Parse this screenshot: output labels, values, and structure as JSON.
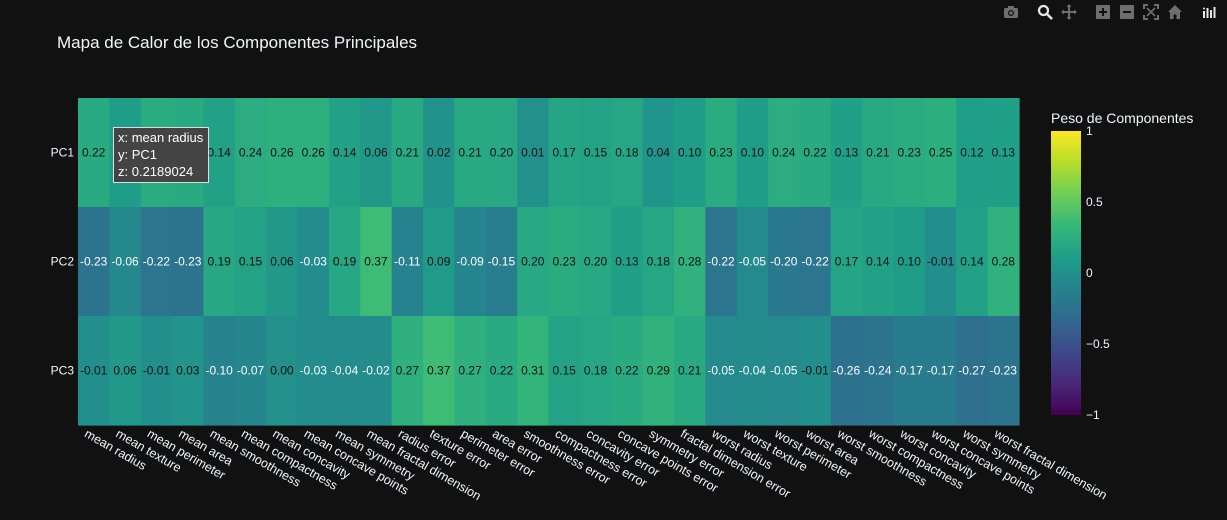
{
  "title": "Mapa de Calor de los Componentes Principales",
  "modebar": {
    "buttons": [
      "camera-icon",
      "zoom-icon",
      "pan-icon",
      "zoom-in-icon",
      "zoom-out-icon",
      "autoscale-icon",
      "home-icon",
      "plotly-logo-icon"
    ]
  },
  "hover": {
    "x": "x: mean radius",
    "y": "y: PC1",
    "z": "z: 0.2189024"
  },
  "chart_data": {
    "type": "heatmap",
    "title": "Mapa de Calor de los Componentes Principales",
    "x": [
      "mean radius",
      "mean texture",
      "mean perimeter",
      "mean area",
      "mean smoothness",
      "mean compactness",
      "mean concavity",
      "mean concave points",
      "mean symmetry",
      "mean fractal dimension",
      "radius error",
      "texture error",
      "perimeter error",
      "area error",
      "smoothness error",
      "compactness error",
      "concavity error",
      "concave points error",
      "symmetry error",
      "fractal dimension error",
      "worst radius",
      "worst texture",
      "worst perimeter",
      "worst area",
      "worst smoothness",
      "worst compactness",
      "worst concavity",
      "worst concave points",
      "worst symmetry",
      "worst fractal dimension"
    ],
    "y": [
      "PC1",
      "PC2",
      "PC3"
    ],
    "z": [
      [
        0.22,
        0.1,
        0.23,
        0.22,
        0.14,
        0.24,
        0.26,
        0.26,
        0.14,
        0.06,
        0.21,
        0.02,
        0.21,
        0.2,
        0.01,
        0.17,
        0.15,
        0.18,
        0.04,
        0.1,
        0.23,
        0.1,
        0.24,
        0.22,
        0.13,
        0.21,
        0.23,
        0.25,
        0.12,
        0.13
      ],
      [
        -0.23,
        -0.06,
        -0.22,
        -0.23,
        0.19,
        0.15,
        0.06,
        -0.03,
        0.19,
        0.37,
        -0.11,
        0.09,
        -0.09,
        -0.15,
        0.2,
        0.23,
        0.2,
        0.13,
        0.18,
        0.28,
        -0.22,
        -0.05,
        -0.2,
        -0.22,
        0.17,
        0.14,
        0.1,
        -0.01,
        0.14,
        0.28
      ],
      [
        -0.01,
        0.06,
        -0.01,
        0.03,
        -0.1,
        -0.07,
        0.0,
        -0.03,
        -0.04,
        -0.02,
        0.27,
        0.37,
        0.27,
        0.22,
        0.31,
        0.15,
        0.18,
        0.22,
        0.29,
        0.21,
        -0.05,
        -0.04,
        -0.05,
        -0.01,
        -0.26,
        -0.24,
        -0.17,
        -0.17,
        -0.27,
        -0.23
      ]
    ],
    "zmin": -1,
    "zmax": 1,
    "colorscale": "viridis",
    "colorbar": {
      "title": "Peso de Componentes",
      "ticks": [
        1,
        0.5,
        0,
        -0.5,
        -1
      ],
      "tick_labels": [
        "1",
        "0.5",
        "0",
        "−0.5",
        "−1"
      ]
    }
  }
}
